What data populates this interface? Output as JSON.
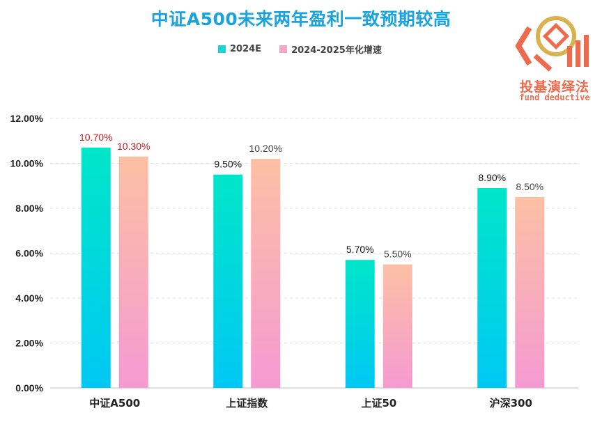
{
  "title": "中证A500未来两年盈利一致预期较高",
  "legend": {
    "items": [
      {
        "label": "2024E",
        "color": "#1ad6d6"
      },
      {
        "label": "2024-2025年化增速",
        "color": "#f6a6c0"
      }
    ]
  },
  "logo": {
    "cn_text": "投基演绎法",
    "en_text": "fund deductive",
    "color": "#ee6a4c",
    "gold": "#d9b24c"
  },
  "chart_data": {
    "type": "bar",
    "categories": [
      "中证A500",
      "上证指数",
      "上证50",
      "沪深300"
    ],
    "series": [
      {
        "name": "2024E",
        "values": [
          10.7,
          9.5,
          5.7,
          8.9
        ]
      },
      {
        "name": "2024-2025年化增速",
        "values": [
          10.3,
          10.2,
          5.5,
          8.5
        ]
      }
    ],
    "data_labels": [
      [
        "10.70%",
        "9.50%",
        "5.70%",
        "8.90%"
      ],
      [
        "10.30%",
        "10.20%",
        "5.50%",
        "8.50%"
      ]
    ],
    "highlight_category": "中证A500",
    "highlight_label_color": "#c8171e",
    "ylim": [
      0,
      12
    ],
    "yticks": [
      "0.00%",
      "2.00%",
      "4.00%",
      "6.00%",
      "8.00%",
      "10.00%",
      "12.00%"
    ],
    "grid": true,
    "legend_position": "top-center",
    "colors": {
      "series1_top": "#00e6c8",
      "series1_bottom": "#00c8f4",
      "series2_top": "#fcc0a4",
      "series2_bottom": "#f59ad2"
    }
  }
}
